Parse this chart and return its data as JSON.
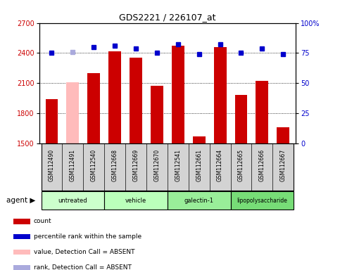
{
  "title": "GDS2221 / 226107_at",
  "samples": [
    "GSM112490",
    "GSM112491",
    "GSM112540",
    "GSM112668",
    "GSM112669",
    "GSM112670",
    "GSM112541",
    "GSM112661",
    "GSM112664",
    "GSM112665",
    "GSM112666",
    "GSM112667"
  ],
  "counts": [
    1940,
    2105,
    2200,
    2420,
    2355,
    2070,
    2470,
    1570,
    2460,
    1980,
    2120,
    1660
  ],
  "absent": [
    false,
    true,
    false,
    false,
    false,
    false,
    false,
    false,
    false,
    false,
    false,
    false
  ],
  "percentile_ranks": [
    75,
    76,
    80,
    81,
    79,
    75,
    82,
    74,
    82,
    75,
    79,
    74
  ],
  "rank_absent": [
    false,
    true,
    false,
    false,
    false,
    false,
    false,
    false,
    false,
    false,
    false,
    false
  ],
  "groups": [
    {
      "label": "untreated",
      "start": 0,
      "end": 3
    },
    {
      "label": "vehicle",
      "start": 3,
      "end": 6
    },
    {
      "label": "galectin-1",
      "start": 6,
      "end": 9
    },
    {
      "label": "lipopolysaccharide",
      "start": 9,
      "end": 12
    }
  ],
  "group_colors": [
    "#ccffcc",
    "#bbffbb",
    "#99ee99",
    "#77dd77"
  ],
  "ylim_left": [
    1500,
    2700
  ],
  "ylim_right": [
    0,
    100
  ],
  "yticks_left": [
    1500,
    1800,
    2100,
    2400,
    2700
  ],
  "yticks_right": [
    0,
    25,
    50,
    75,
    100
  ],
  "bar_color": "#cc0000",
  "absent_bar_color": "#ffbbbb",
  "dot_color": "#0000cc",
  "absent_dot_color": "#aaaadd",
  "bar_width": 0.6,
  "legend_items": [
    {
      "color": "#cc0000",
      "label": "count"
    },
    {
      "color": "#0000cc",
      "label": "percentile rank within the sample"
    },
    {
      "color": "#ffbbbb",
      "label": "value, Detection Call = ABSENT"
    },
    {
      "color": "#aaaadd",
      "label": "rank, Detection Call = ABSENT"
    }
  ]
}
